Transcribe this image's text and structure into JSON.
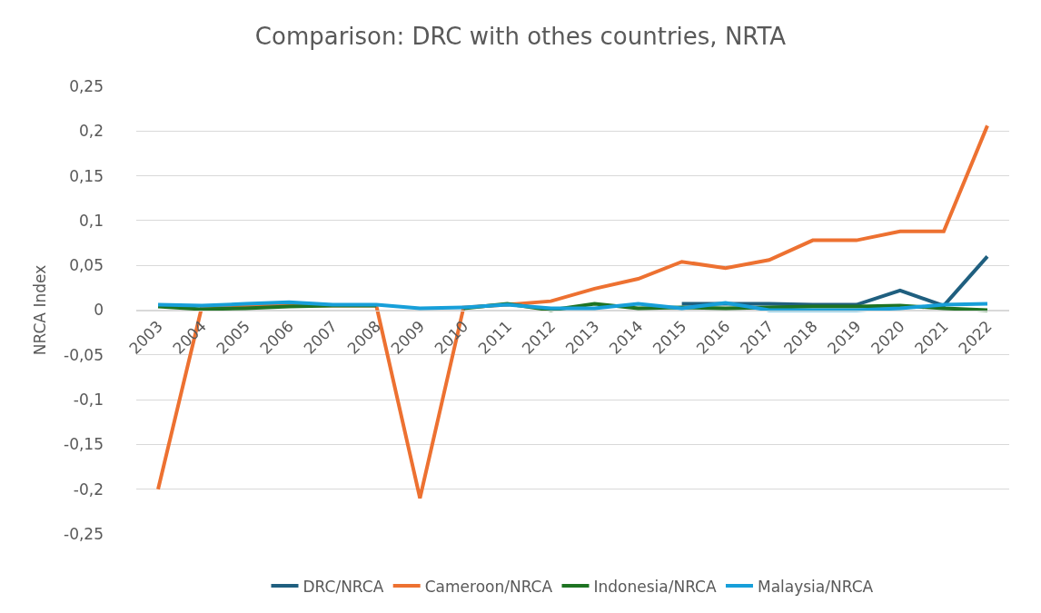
{
  "chart_data": {
    "type": "line",
    "title": "Comparison: DRC with othes countries, NRTA",
    "ylabel": "NRCA Index",
    "categories": [
      "2003",
      "2004",
      "2005",
      "2006",
      "2007",
      "2008",
      "2009",
      "2010",
      "2011",
      "2012",
      "2013",
      "2014",
      "2015",
      "2016",
      "2017",
      "2018",
      "2019",
      "2020",
      "2021",
      "2022"
    ],
    "series": [
      {
        "name": "DRC/NRCA",
        "color": "#1f5f7f",
        "values": [
          null,
          null,
          null,
          null,
          null,
          null,
          null,
          null,
          null,
          null,
          null,
          null,
          0.007,
          0.007,
          0.007,
          0.006,
          0.006,
          0.022,
          0.005,
          0.06
        ]
      },
      {
        "name": "Cameroon/NRCA",
        "color": "#ed7131",
        "values": [
          -0.2,
          0.003,
          0.005,
          0.005,
          0.005,
          0.005,
          -0.21,
          0.003,
          0.006,
          0.01,
          0.024,
          0.035,
          0.054,
          0.047,
          0.056,
          0.078,
          0.078,
          0.088,
          0.088,
          0.206
        ]
      },
      {
        "name": "Indonesia/NRCA",
        "color": "#1e7322",
        "values": [
          0.004,
          0.001,
          0.002,
          0.004,
          0.005,
          0.005,
          null,
          0.002,
          0.007,
          0.0,
          0.007,
          0.002,
          0.003,
          0.002,
          0.003,
          0.004,
          0.004,
          0.005,
          0.002,
          0.0
        ]
      },
      {
        "name": "Malaysia/NRCA",
        "color": "#179fd9",
        "values": [
          0.006,
          0.005,
          0.007,
          0.009,
          0.006,
          0.006,
          0.002,
          0.003,
          0.006,
          0.002,
          0.002,
          0.007,
          0.002,
          0.008,
          0.0,
          0.0,
          0.0,
          0.002,
          0.006,
          0.007
        ]
      }
    ],
    "ylim": [
      -0.25,
      0.25
    ],
    "yticks": [
      {
        "value": 0.25,
        "label": "0,25"
      },
      {
        "value": 0.2,
        "label": "0,2"
      },
      {
        "value": 0.15,
        "label": "0,15"
      },
      {
        "value": 0.1,
        "label": "0,1"
      },
      {
        "value": 0.05,
        "label": "0,05"
      },
      0,
      {
        "value": -0.05,
        "label": "-0,05"
      },
      {
        "value": -0.1,
        "label": "-0,1"
      },
      {
        "value": -0.15,
        "label": "-0,15"
      },
      {
        "value": -0.2,
        "label": "-0,2"
      },
      {
        "value": -0.25,
        "label": "-0,25"
      }
    ],
    "grid": "y",
    "legend": "bottom",
    "marker": "none",
    "line_style": "solid"
  }
}
